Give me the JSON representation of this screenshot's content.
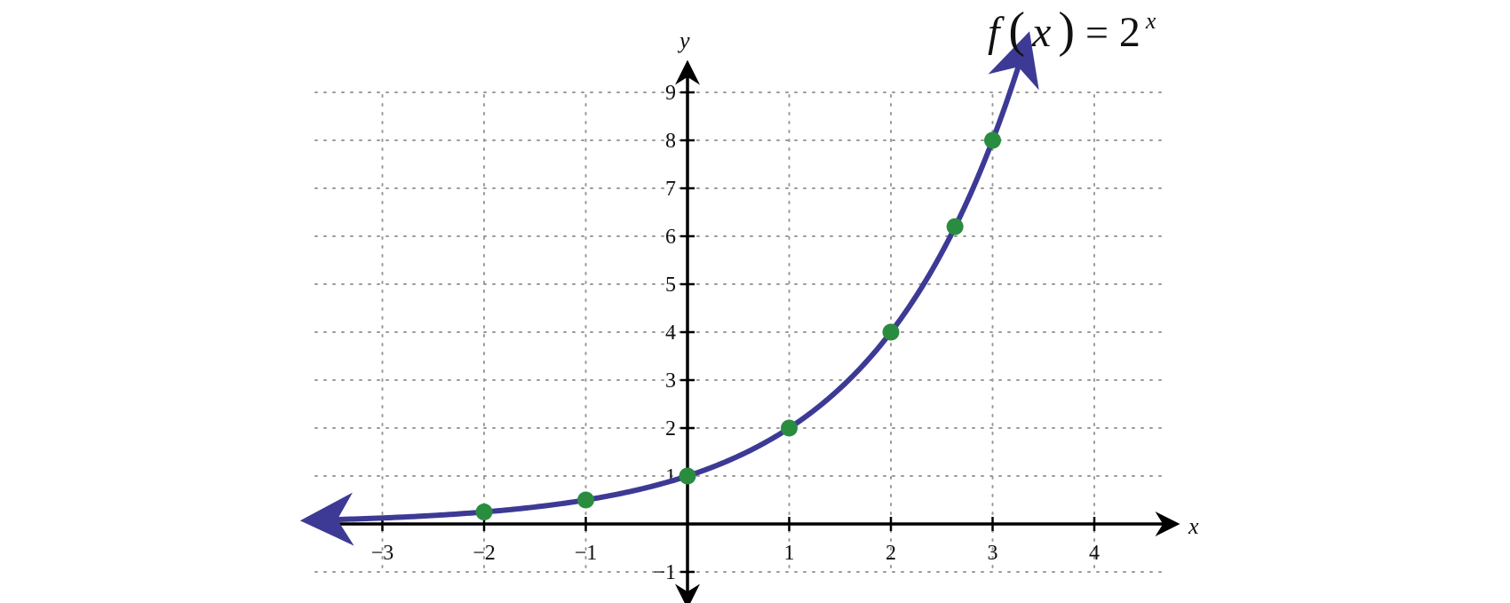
{
  "chart_data": {
    "type": "line",
    "title": "",
    "function_label": {
      "fx": "f",
      "open": "(",
      "var": "x",
      "close": ")",
      "equals": "=",
      "base": "2",
      "exponent": "x"
    },
    "xlabel": "x",
    "ylabel": "y",
    "xlim": [
      -3.75,
      4.7
    ],
    "ylim": [
      -1.5,
      9.5
    ],
    "x_ticks": [
      -3,
      -2,
      -1,
      1,
      2,
      3,
      4
    ],
    "x_tick_labels": [
      "−3",
      "−2",
      "−1",
      "1",
      "2",
      "3",
      "4"
    ],
    "y_ticks": [
      -1,
      1,
      2,
      3,
      4,
      5,
      6,
      7,
      8,
      9
    ],
    "y_tick_labels": [
      "−1",
      "1",
      "2",
      "3",
      "4",
      "5",
      "6",
      "7",
      "8",
      "9"
    ],
    "grid": true,
    "series": [
      {
        "function": "2^x",
        "x_range": [
          -3.6,
          3.3
        ],
        "color": "#3d3a96",
        "points": [
          {
            "x": -2,
            "y": 0.25
          },
          {
            "x": -1,
            "y": 0.5
          },
          {
            "x": 0,
            "y": 1
          },
          {
            "x": 1,
            "y": 2
          },
          {
            "x": 2,
            "y": 4
          },
          {
            "x": 2.63,
            "y": 6.2
          },
          {
            "x": 3,
            "y": 8
          }
        ],
        "point_color": "#2a8c3f"
      }
    ]
  }
}
